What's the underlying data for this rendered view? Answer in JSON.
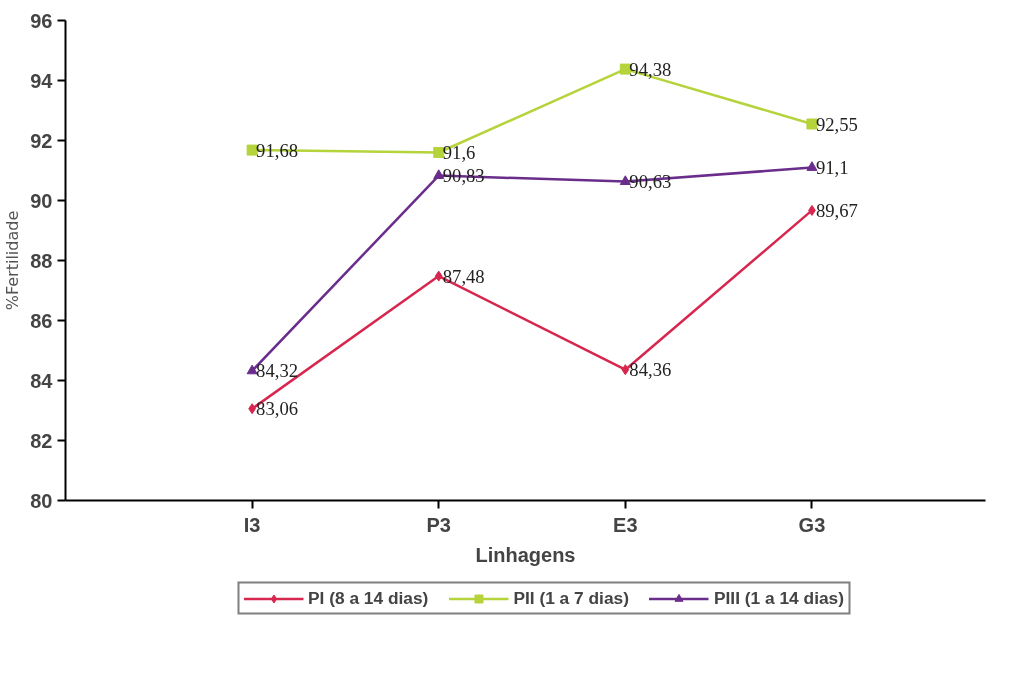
{
  "chart_data": {
    "type": "line",
    "xlabel": "Linhagens",
    "ylabel": "%Fertilidade",
    "categories": [
      "I3",
      "P3",
      "E3",
      "G3"
    ],
    "ylim": [
      80,
      96
    ],
    "yticks": [
      80,
      82,
      84,
      86,
      88,
      90,
      92,
      94,
      96
    ],
    "grid": false,
    "legend": "bottom",
    "series": [
      {
        "name": "PI (8 a 14 dias)",
        "color": "#d8274f",
        "marker": "diamond",
        "values": [
          83.06,
          87.48,
          84.36,
          89.67
        ],
        "value_labels": [
          "83,06",
          "87,48",
          "84,36",
          "89,67"
        ]
      },
      {
        "name": "PII (1 a 7 dias)",
        "color": "#b5d33a",
        "marker": "square",
        "values": [
          91.68,
          91.6,
          94.38,
          92.55
        ],
        "value_labels": [
          "91,68",
          "91,6",
          "94,38",
          "92,55"
        ]
      },
      {
        "name": "PIII (1 a 14 dias)",
        "color": "#6b2d8c",
        "marker": "triangle",
        "values": [
          84.32,
          90.83,
          90.63,
          91.1
        ],
        "value_labels": [
          "84,32",
          "90,83",
          "90,63",
          "91,1"
        ]
      }
    ]
  }
}
